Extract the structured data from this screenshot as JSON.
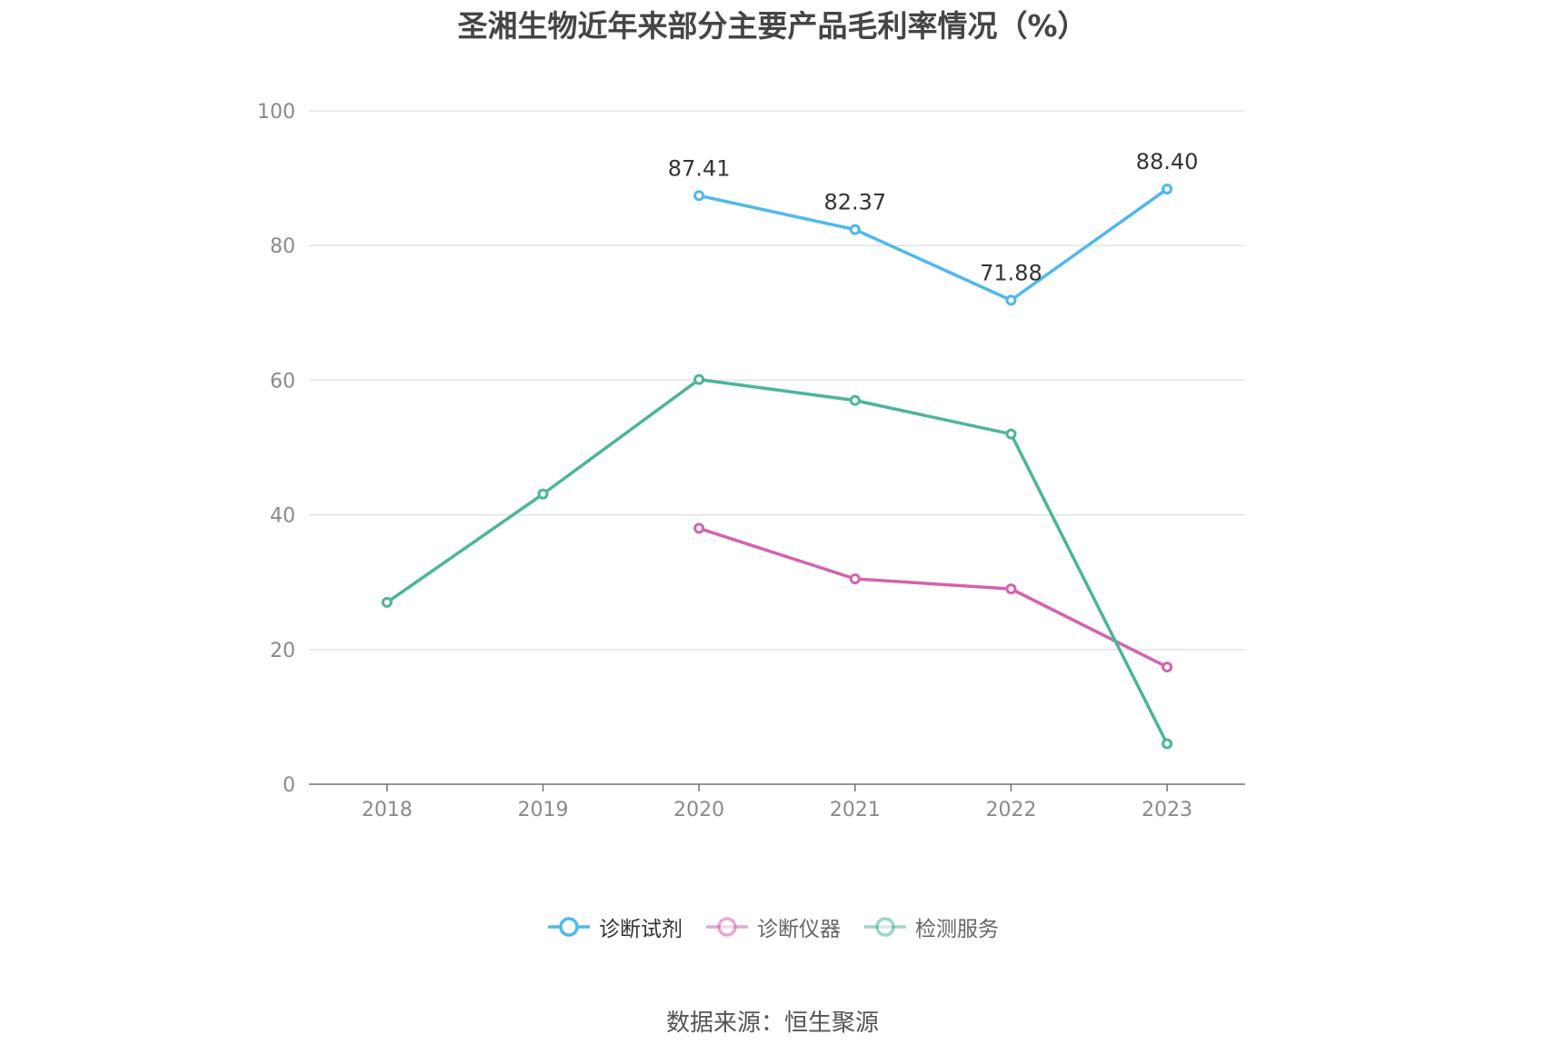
{
  "title": "圣湘生物近年来部分主要产品毛利率情况（%）",
  "source": "数据来源：恒生聚源",
  "chart_data": {
    "type": "line",
    "title": "圣湘生物近年来部分主要产品毛利率情况（%）",
    "xlabel": "",
    "ylabel": "",
    "categories": [
      "2018",
      "2019",
      "2020",
      "2021",
      "2022",
      "2023"
    ],
    "ylim": [
      0,
      100
    ],
    "yticks": [
      0,
      20,
      40,
      60,
      80,
      100
    ],
    "grid": true,
    "legend_position": "bottom",
    "series": [
      {
        "name": "诊断试剂",
        "color": "#4fb8ec",
        "values": [
          null,
          null,
          87.41,
          82.37,
          71.88,
          88.4
        ],
        "labels": [
          null,
          null,
          "87.41",
          "82.37",
          "71.88",
          "88.40"
        ]
      },
      {
        "name": "诊断仪器",
        "color": "#d462ad",
        "values": [
          null,
          null,
          38.0,
          30.5,
          29.0,
          17.4
        ]
      },
      {
        "name": "检测服务",
        "color": "#4cb59a",
        "values": [
          27.0,
          43.1,
          60.1,
          57.0,
          52.0,
          6.0
        ]
      }
    ]
  }
}
